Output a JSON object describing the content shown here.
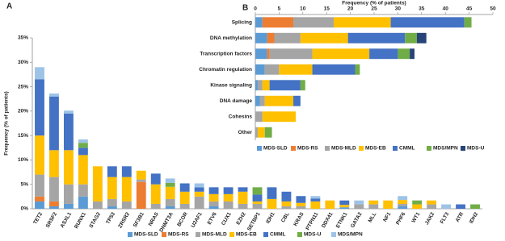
{
  "chart_data": [
    {
      "type": "stacked_bar",
      "panel_label": "A",
      "y_label": "Frequency (% of patients)",
      "categories": [
        "TET2",
        "SRSF2",
        "ASXL1",
        "RUNX1",
        "STAG2",
        "TP53",
        "ZRSR2",
        "SF3B1",
        "NRAS",
        "DNMT3A",
        "BCOR",
        "U2AF1",
        "ETV6",
        "CUX1",
        "EZH2",
        "SETBP1",
        "IDH1",
        "CBL",
        "KRAS",
        "PTPN11",
        "DDX41",
        "ETNK1",
        "GATA2",
        "MLL",
        "NF1",
        "PHF6",
        "WT1",
        "JAK2",
        "FLT3",
        "ATR",
        "IDH2"
      ],
      "series": [
        {
          "name": "MDS-SLD",
          "color": "#5b9bd5",
          "values": [
            1.5,
            0.5,
            1,
            2.5,
            0,
            0.5,
            0,
            0,
            0,
            0.5,
            0,
            0,
            0.5,
            0,
            0,
            0,
            0,
            0,
            0,
            0,
            0,
            0.3,
            0,
            0,
            0,
            0.5,
            0,
            0,
            0,
            0,
            0
          ]
        },
        {
          "name": "MDS-RS",
          "color": "#ed7d31",
          "values": [
            1,
            1,
            0,
            0,
            0,
            0,
            0,
            5.5,
            0,
            0,
            0,
            0,
            0,
            0,
            0,
            0,
            0,
            0,
            0,
            0,
            0,
            0,
            0,
            0,
            0,
            0,
            0,
            0,
            0,
            0,
            0
          ]
        },
        {
          "name": "MDS-MLD",
          "color": "#a5a5a5",
          "values": [
            4.5,
            5,
            4,
            2.5,
            1.5,
            1.5,
            1.5,
            0.5,
            1,
            1.5,
            1,
            2.5,
            1,
            1.5,
            1,
            1,
            0,
            0.5,
            0.5,
            0,
            0,
            0,
            0.9,
            0.9,
            0,
            0.5,
            0,
            0.9,
            0,
            0,
            0
          ]
        },
        {
          "name": "MDS-EB",
          "color": "#ffc000",
          "values": [
            8,
            5.5,
            7,
            6,
            7.2,
            4.5,
            5,
            1.8,
            4,
            2.5,
            2.5,
            1,
            1.5,
            1.5,
            2.5,
            0.5,
            2,
            1,
            0.7,
            1.5,
            1.7,
            0.5,
            0,
            0.8,
            1.7,
            0.8,
            0.9,
            0.8,
            0,
            0,
            0
          ]
        },
        {
          "name": "CMML",
          "color": "#4472c4",
          "values": [
            11.5,
            11,
            7.5,
            1.5,
            0,
            2.2,
            2.2,
            0,
            2.2,
            0,
            1.7,
            0.9,
            1.4,
            1.4,
            0.9,
            1.4,
            2.4,
            2,
            1.4,
            0.6,
            0,
            0.9,
            0,
            0,
            0,
            0,
            0,
            0,
            0,
            0.9,
            0
          ]
        },
        {
          "name": "MDS-U",
          "color": "#70ad47",
          "values": [
            0,
            0,
            0,
            1,
            0,
            0,
            0,
            0,
            0,
            0.8,
            0,
            0,
            0,
            0,
            0,
            1.5,
            0,
            0,
            0,
            0,
            0,
            0,
            0,
            0,
            0,
            0,
            0.8,
            0,
            0,
            0,
            0.9
          ]
        },
        {
          "name": "MDS/MPN",
          "color": "#9dc3e6",
          "values": [
            2.5,
            0.6,
            0.6,
            0.7,
            0,
            0,
            0,
            0,
            0,
            0.9,
            0,
            0.8,
            0,
            0,
            0,
            0,
            0,
            0,
            0,
            0.5,
            0,
            0,
            0.8,
            0,
            0,
            0.8,
            0,
            0,
            0.9,
            0,
            0
          ]
        }
      ],
      "ylim": [
        0,
        35
      ],
      "yticks": [
        {
          "value": 0,
          "label": "0%"
        },
        {
          "value": 5,
          "label": "5%"
        },
        {
          "value": 10,
          "label": "10%"
        },
        {
          "value": 15,
          "label": "15%"
        },
        {
          "value": 20,
          "label": "20%"
        },
        {
          "value": 25,
          "label": "25%"
        },
        {
          "value": 30,
          "label": "30%"
        },
        {
          "value": 35,
          "label": "35%"
        }
      ]
    },
    {
      "type": "stacked_barh",
      "panel_label": "B",
      "x_label": "Frequency (% of patients)",
      "categories": [
        "Splicing",
        "DNA methylation",
        "Transcription factors",
        "Chromatin regulation",
        "Kinase signaling",
        "DNA damage",
        "Cohesins",
        "Other"
      ],
      "series": [
        {
          "name": "MDS-SLD",
          "color": "#5b9bd5",
          "values": [
            1.5,
            2.5,
            2.5,
            2,
            0.5,
            1,
            0,
            0
          ]
        },
        {
          "name": "MDS-RS",
          "color": "#ed7d31",
          "values": [
            6.5,
            1.5,
            0.5,
            0,
            0,
            0,
            0,
            0
          ]
        },
        {
          "name": "MDS-MLD",
          "color": "#a5a5a5",
          "values": [
            8.5,
            5.5,
            9,
            3,
            1,
            1,
            1.5,
            0.5
          ]
        },
        {
          "name": "MDS-EB",
          "color": "#ffc000",
          "values": [
            12,
            10,
            12,
            7,
            1.5,
            6,
            7,
            1.5
          ]
        },
        {
          "name": "CMML",
          "color": "#4472c4",
          "values": [
            15.5,
            12,
            6,
            9,
            6.5,
            1.5,
            0,
            0
          ]
        },
        {
          "name": "MDS/MPN",
          "color": "#70ad47",
          "values": [
            1.5,
            2.5,
            2.5,
            1,
            1,
            0,
            0,
            1.5
          ]
        },
        {
          "name": "MDS-U",
          "color": "#264478",
          "values": [
            0,
            2,
            1,
            0,
            0,
            0,
            0,
            0
          ]
        }
      ],
      "xlim": [
        0,
        50
      ],
      "xticks": [
        0,
        5,
        10,
        15,
        20,
        25,
        30,
        35,
        40,
        45,
        50
      ]
    }
  ]
}
